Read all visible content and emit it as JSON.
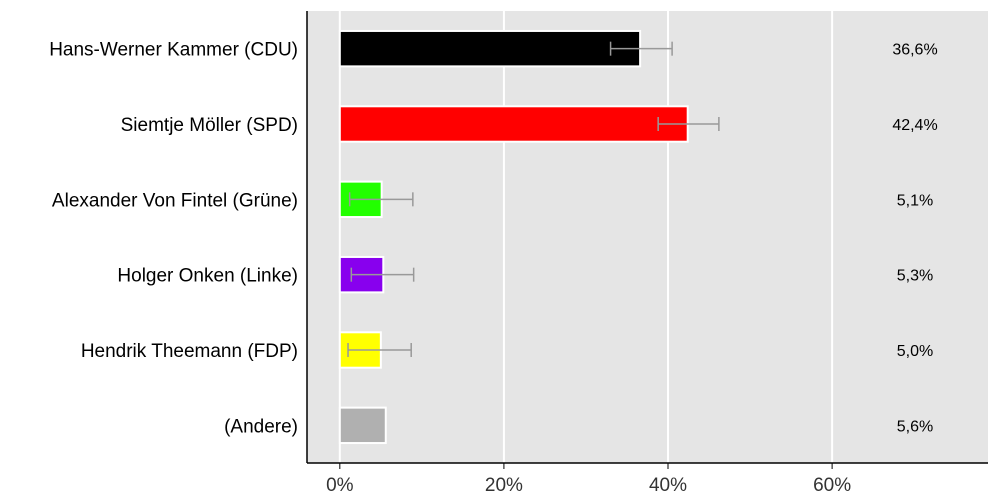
{
  "chart_data": {
    "type": "bar",
    "orientation": "horizontal",
    "categories": [
      "Hans-Werner Kammer (CDU)",
      "Siemtje Möller (SPD)",
      "Alexander Von Fintel (Grüne)",
      "Holger Onken (Linke)",
      "Hendrik Theemann (FDP)",
      "(Andere)"
    ],
    "values": [
      36.6,
      42.4,
      5.1,
      5.3,
      5.0,
      5.6
    ],
    "value_labels": [
      "36,6%",
      "42,4%",
      "5,1%",
      "5,3%",
      "5,0%",
      "5,6%"
    ],
    "error_bars": [
      [
        33.0,
        40.5
      ],
      [
        38.8,
        46.2
      ],
      [
        1.2,
        8.9
      ],
      [
        1.4,
        9.0
      ],
      [
        1.0,
        8.7
      ],
      null
    ],
    "colors": [
      "#000000",
      "#ff0000",
      "#22ff00",
      "#8800ee",
      "#ffff00",
      "#b0b0b0"
    ],
    "error_bar_color": "#999999",
    "xlim": [
      -4,
      79
    ],
    "xticks": [
      0,
      20,
      40,
      60
    ],
    "xtick_labels": [
      "0%",
      "20%",
      "40%",
      "60%"
    ],
    "grid": true,
    "background_color": "#e5e5e5"
  }
}
